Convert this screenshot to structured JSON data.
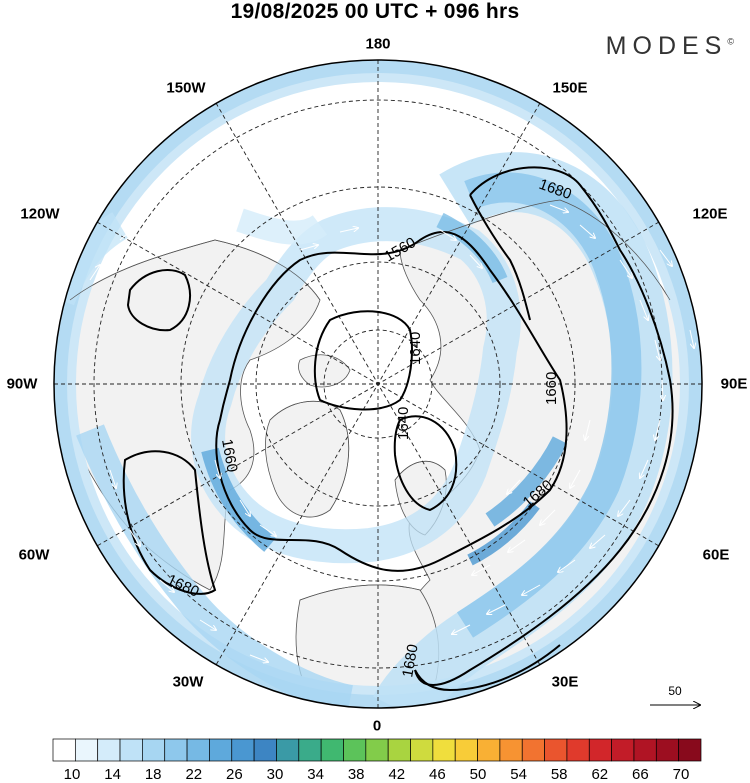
{
  "header": {
    "title": "19/08/2025  00 UTC  + 096 hrs",
    "logo": "MODES",
    "logo_mark": "©"
  },
  "map": {
    "projection": "north-polar-stereographic",
    "longitude_labels": {
      "top": "180",
      "bottom": "0",
      "left": "90W",
      "right": "90E",
      "upper_left_1": "150W",
      "upper_left_2": "120W",
      "upper_right_1": "150E",
      "upper_right_2": "120E",
      "lower_left_1": "60W",
      "lower_left_2": "30W",
      "lower_right_1": "60E",
      "lower_right_2": "30E"
    },
    "contour_labels": [
      "1680",
      "1560",
      "1640",
      "1640",
      "1660",
      "1660",
      "1680",
      "1680",
      "1680"
    ],
    "reference_vector": "50",
    "colors": {
      "land_fill": "#f2f2f2",
      "ocean_fill": "#ffffff",
      "coast": "#444444",
      "contour": "#000000",
      "grid": "#222222"
    }
  },
  "colorbar": {
    "labels": [
      "10",
      "14",
      "18",
      "22",
      "26",
      "30",
      "34",
      "38",
      "42",
      "46",
      "50",
      "54",
      "58",
      "62",
      "66",
      "70"
    ],
    "colors": [
      "#ffffff",
      "#eaf6fd",
      "#d4ecfa",
      "#bfe2f7",
      "#a7d6f2",
      "#8ec8ec",
      "#76b9e4",
      "#5ea9dc",
      "#4a97d1",
      "#3d85c3",
      "#3a9aa6",
      "#3aab8a",
      "#40b870",
      "#5cc35a",
      "#82cc4a",
      "#a9d440",
      "#cfdb3e",
      "#f0de3d",
      "#f8cc38",
      "#f9b034",
      "#f79332",
      "#f27330",
      "#ea552e",
      "#e03a2c",
      "#d2262a",
      "#c21c28",
      "#b01424",
      "#9c0e20",
      "#880a1c"
    ]
  }
}
